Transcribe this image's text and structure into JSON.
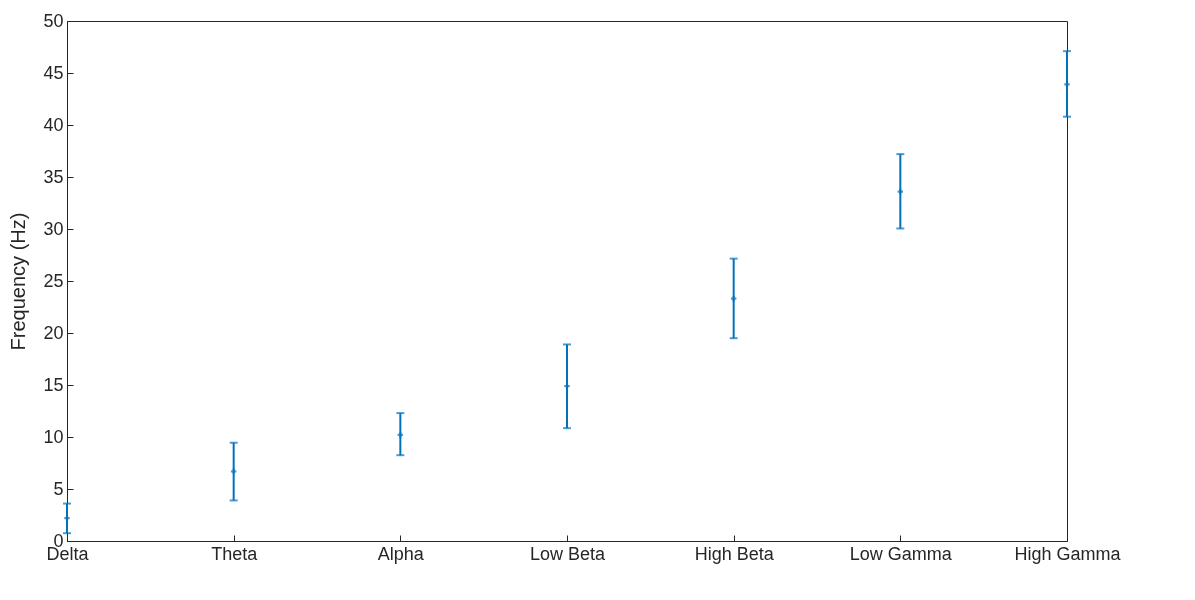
{
  "chart_data": {
    "type": "scatter",
    "ylabel": "Frequency (Hz)",
    "categories": [
      "Delta",
      "Theta",
      "Alpha",
      "Low Beta",
      "High Beta",
      "Low Gamma",
      "High Gamma"
    ],
    "values": [
      2.2,
      6.7,
      10.2,
      14.9,
      23.3,
      33.6,
      43.9
    ],
    "errors": [
      [
        0.75,
        3.6
      ],
      [
        3.9,
        9.45
      ],
      [
        8.25,
        12.3
      ],
      [
        10.85,
        18.9
      ],
      [
        19.5,
        27.15
      ],
      [
        30.05,
        37.2
      ],
      [
        40.8,
        47.1
      ]
    ],
    "color": "#0072bd",
    "marker": "cross",
    "grid": false,
    "ylim": [
      0,
      50
    ],
    "yticks": [
      0,
      5,
      10,
      15,
      20,
      25,
      30,
      35,
      40,
      45,
      50
    ]
  }
}
